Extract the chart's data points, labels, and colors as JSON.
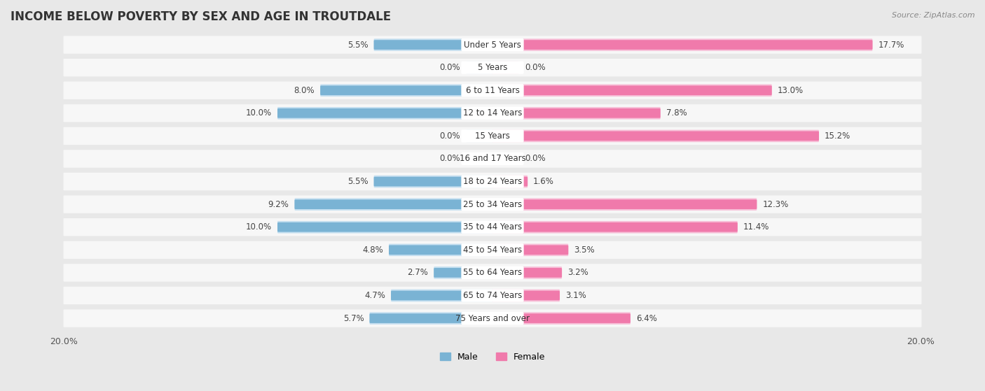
{
  "title": "INCOME BELOW POVERTY BY SEX AND AGE IN TROUTDALE",
  "source": "Source: ZipAtlas.com",
  "categories": [
    "Under 5 Years",
    "5 Years",
    "6 to 11 Years",
    "12 to 14 Years",
    "15 Years",
    "16 and 17 Years",
    "18 to 24 Years",
    "25 to 34 Years",
    "35 to 44 Years",
    "45 to 54 Years",
    "55 to 64 Years",
    "65 to 74 Years",
    "75 Years and over"
  ],
  "male_values": [
    5.5,
    0.0,
    8.0,
    10.0,
    0.0,
    0.0,
    5.5,
    9.2,
    10.0,
    4.8,
    2.7,
    4.7,
    5.7
  ],
  "female_values": [
    17.7,
    0.0,
    13.0,
    7.8,
    15.2,
    0.0,
    1.6,
    12.3,
    11.4,
    3.5,
    3.2,
    3.1,
    6.4
  ],
  "male_color": "#7ab3d4",
  "female_color": "#f07aab",
  "male_color_light": "#c5dff0",
  "female_color_light": "#f7c0d8",
  "axis_max": 20.0,
  "background_color": "#e8e8e8",
  "row_bg_color": "#f7f7f7",
  "legend_male_label": "Male",
  "legend_female_label": "Female",
  "title_fontsize": 12,
  "label_fontsize": 8.5,
  "tick_fontsize": 9,
  "value_fontsize": 8.5
}
